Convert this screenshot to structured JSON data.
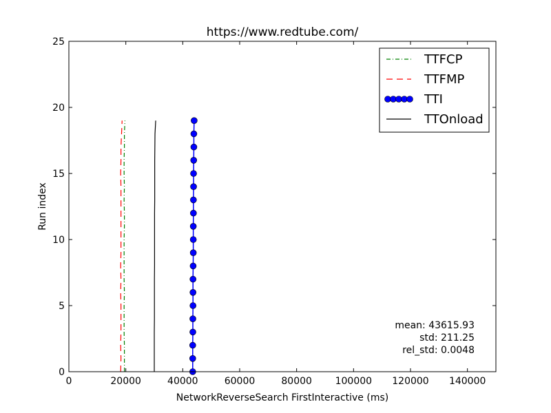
{
  "chart_data": {
    "type": "line",
    "title": "https://www.redtube.com/",
    "xlabel": "NetworkReverseSearch FirstInteractive (ms)",
    "ylabel": "Run index",
    "xlim": [
      0,
      150000
    ],
    "ylim": [
      0,
      25
    ],
    "xticks": [
      0,
      20000,
      40000,
      60000,
      80000,
      100000,
      120000,
      140000
    ],
    "yticks": [
      0,
      5,
      10,
      15,
      20,
      25
    ],
    "legend_position": "top-right",
    "grid": false,
    "series": [
      {
        "name": "TTFCP",
        "color": "#008000",
        "style": "dashdot",
        "marker": "none",
        "x": [
          19500,
          19500,
          19500,
          19400,
          19400,
          19400,
          19500,
          19400,
          19400,
          19400,
          19400,
          19500,
          19500,
          19400,
          19500,
          19400,
          19400,
          19500,
          19500,
          19700
        ],
        "y": [
          0,
          1,
          2,
          3,
          4,
          5,
          6,
          7,
          8,
          9,
          10,
          11,
          12,
          13,
          14,
          15,
          16,
          17,
          18,
          19
        ]
      },
      {
        "name": "TTFMP",
        "color": "#ff0000",
        "style": "dashed",
        "marker": "none",
        "x": [
          18200,
          18300,
          18200,
          18300,
          18300,
          18300,
          18200,
          18300,
          18200,
          18300,
          18300,
          18300,
          18300,
          18300,
          18300,
          18200,
          18300,
          18300,
          18500,
          18700
        ],
        "y": [
          0,
          1,
          2,
          3,
          4,
          5,
          6,
          7,
          8,
          9,
          10,
          11,
          12,
          13,
          14,
          15,
          16,
          17,
          18,
          19
        ]
      },
      {
        "name": "TTI",
        "color": "#0000ff",
        "style": "solid",
        "marker": "circle",
        "x": [
          43500,
          43500,
          43500,
          43550,
          43550,
          43600,
          43600,
          43600,
          43650,
          43700,
          43700,
          43700,
          43750,
          43750,
          43800,
          43800,
          43850,
          43900,
          43900,
          44000
        ],
        "y": [
          0,
          1,
          2,
          3,
          4,
          5,
          6,
          7,
          8,
          9,
          10,
          11,
          12,
          13,
          14,
          15,
          16,
          17,
          18,
          19
        ]
      },
      {
        "name": "TTOnload",
        "color": "#000000",
        "style": "solid",
        "marker": "none",
        "x": [
          30000,
          30000,
          30000,
          30000,
          30050,
          30050,
          30050,
          30050,
          30100,
          30100,
          30100,
          30100,
          30100,
          30150,
          30150,
          30150,
          30150,
          30200,
          30250,
          30500
        ],
        "y": [
          0,
          1,
          2,
          3,
          4,
          5,
          6,
          7,
          8,
          9,
          10,
          11,
          12,
          13,
          14,
          15,
          16,
          17,
          18,
          19
        ]
      }
    ],
    "annotations": [
      "mean: 43615.93",
      "std: 211.25",
      "rel_std: 0.0048"
    ]
  }
}
